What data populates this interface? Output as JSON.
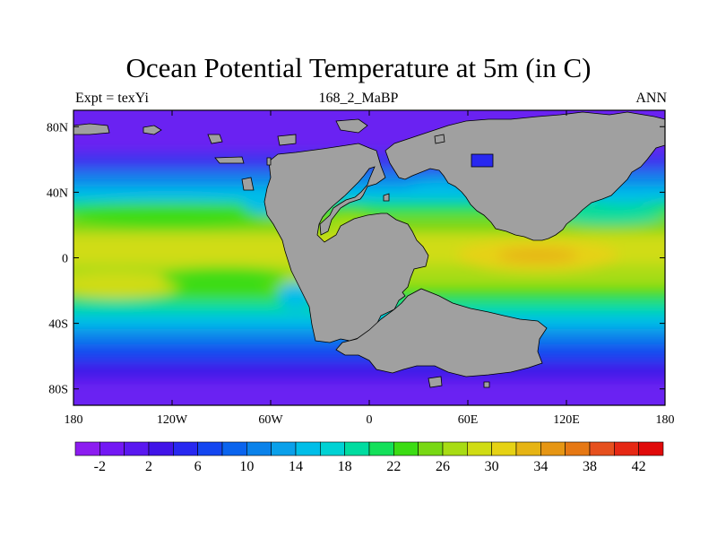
{
  "title": "Ocean Potential Temperature at 5m (in C)",
  "subtitle_left": "Expt = texYi",
  "subtitle_center": "168_2_MaBP",
  "subtitle_right": "ANN",
  "map": {
    "x_ticks": [
      {
        "lon": -180,
        "label": "180"
      },
      {
        "lon": -120,
        "label": "120W"
      },
      {
        "lon": -60,
        "label": "60W"
      },
      {
        "lon": 0,
        "label": "0"
      },
      {
        "lon": 60,
        "label": "60E"
      },
      {
        "lon": 120,
        "label": "120E"
      },
      {
        "lon": 180,
        "label": "180"
      }
    ],
    "y_ticks": [
      {
        "lat": 80,
        "label": "80N"
      },
      {
        "lat": 40,
        "label": "40N"
      },
      {
        "lat": 0,
        "label": "0"
      },
      {
        "lat": -40,
        "label": "40S"
      },
      {
        "lat": -80,
        "label": "80S"
      }
    ],
    "lon_range": [
      -180,
      180
    ],
    "lat_range": [
      -90,
      90
    ],
    "land_color": "#a0a0a0"
  },
  "colorbar": {
    "levels": [
      -4,
      -2,
      0,
      2,
      4,
      6,
      8,
      10,
      12,
      14,
      16,
      18,
      20,
      22,
      24,
      26,
      28,
      30,
      32,
      34,
      36,
      38,
      40,
      42,
      44
    ],
    "colors": [
      "#8c1cf0",
      "#7318f4",
      "#5a18f0",
      "#4114e8",
      "#2828f0",
      "#1446f0",
      "#0a64ee",
      "#0a82ea",
      "#0aa0ea",
      "#00bee8",
      "#00d2d4",
      "#00dca0",
      "#14e05a",
      "#3cdc14",
      "#78d814",
      "#a8dc14",
      "#d0dc14",
      "#e6d214",
      "#e6b414",
      "#e69614",
      "#e67814",
      "#e6501e",
      "#e62814",
      "#e00a0a"
    ],
    "labels": [
      {
        "value": -2,
        "label": "-2"
      },
      {
        "value": 2,
        "label": "2"
      },
      {
        "value": 6,
        "label": "6"
      },
      {
        "value": 10,
        "label": "10"
      },
      {
        "value": 14,
        "label": "14"
      },
      {
        "value": 18,
        "label": "18"
      },
      {
        "value": 22,
        "label": "22"
      },
      {
        "value": 26,
        "label": "26"
      },
      {
        "value": 30,
        "label": "30"
      },
      {
        "value": 34,
        "label": "34"
      },
      {
        "value": 38,
        "label": "38"
      },
      {
        "value": 42,
        "label": "42"
      }
    ]
  }
}
